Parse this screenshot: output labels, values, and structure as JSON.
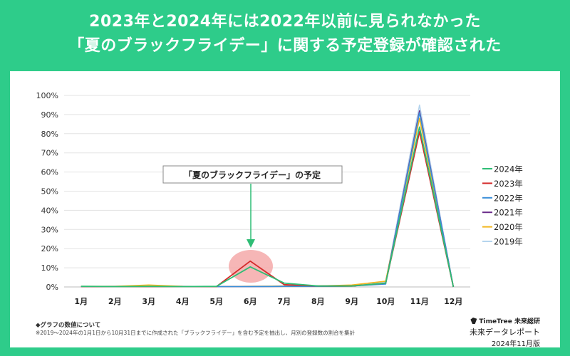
{
  "headline": {
    "line1": "2023年と2024年には2022年以前に見られなかった",
    "line2": "「夏のブラックフライデー」に関する予定登録が確認された"
  },
  "annotation": "「夏のブラックフライデー」の予定",
  "notes": {
    "heading": "◆グラフの数値について",
    "detail": "※2019〜2024年の1月1日から10月31日までに作成された「ブラックフライデー」を含む予定を抽出し、月別の登録数の割合を集計"
  },
  "branding": {
    "logo_text": "TimeTree 未来総研",
    "report": "未来データレポート",
    "edition": "2024年11月版"
  },
  "chart_data": {
    "type": "line",
    "categories": [
      "1月",
      "2月",
      "3月",
      "4月",
      "5月",
      "6月",
      "7月",
      "8月",
      "9月",
      "10月",
      "11月",
      "12月"
    ],
    "y_ticks": [
      "0%",
      "10%",
      "20%",
      "30%",
      "40%",
      "50%",
      "60%",
      "70%",
      "80%",
      "90%",
      "100%"
    ],
    "ylim": [
      0,
      100
    ],
    "grid": true,
    "legend_position": "right",
    "series": [
      {
        "name": "2024年",
        "color": "#2ebd75",
        "values": [
          0.3,
          0.2,
          0.3,
          0.2,
          0.3,
          10.5,
          2,
          0.5,
          0.5,
          2,
          83.5,
          0
        ]
      },
      {
        "name": "2023年",
        "color": "#d42b2b",
        "values": [
          0.2,
          0.2,
          0.2,
          0.2,
          0.2,
          13.5,
          1.2,
          0.5,
          0.5,
          2,
          81,
          0
        ]
      },
      {
        "name": "2022年",
        "color": "#3a8fd9",
        "values": [
          0.2,
          0.2,
          0.2,
          0.2,
          0.2,
          0.2,
          0.3,
          0.3,
          0.5,
          1.5,
          91,
          0
        ]
      },
      {
        "name": "2021年",
        "color": "#6a2c8a",
        "values": [
          0.2,
          0.2,
          0.2,
          0.2,
          0.2,
          0.2,
          0.3,
          0.3,
          0.5,
          1.8,
          92,
          0
        ]
      },
      {
        "name": "2020年",
        "color": "#f2b61c",
        "values": [
          0.3,
          0.3,
          1,
          0.3,
          0.2,
          0.3,
          0.5,
          0.5,
          1,
          3,
          88,
          0
        ]
      },
      {
        "name": "2019年",
        "color": "#b5d5ee",
        "values": [
          0.3,
          0.3,
          0.5,
          0.3,
          0.2,
          0.3,
          0.3,
          0.3,
          0.5,
          2.5,
          95,
          0
        ]
      }
    ]
  }
}
